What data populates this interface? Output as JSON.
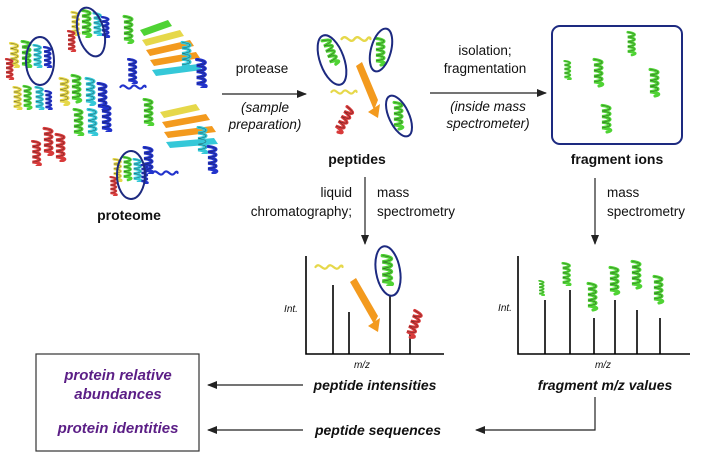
{
  "labels": {
    "proteome": "proteome",
    "protease": "protease",
    "sample_prep_1": "(sample",
    "sample_prep_2": "preparation)",
    "peptides": "peptides",
    "isolation_1": "isolation;",
    "isolation_2": "fragmentation",
    "inside_ms_1": "(inside mass",
    "inside_ms_2": "spectrometer)",
    "fragment_ions": "fragment ions",
    "lc_1": "liquid",
    "lc_2": "chromatography;",
    "ms_1": "mass",
    "ms_2": "spectrometry",
    "ms2_1": "mass",
    "ms2_2": "spectrometry",
    "int_left": "Int.",
    "mz_left": "m/z",
    "int_right": "Int.",
    "mz_right": "m/z",
    "peptide_intensities": "peptide intensities",
    "fragment_mz_values": "fragment m/z values",
    "peptide_sequences": "peptide sequences",
    "protein_relative_1": "protein relative",
    "protein_relative_2": "abundances",
    "protein_identities": "protein identities"
  },
  "colors": {
    "ellipse": "#1d2a80",
    "purple_text": "#5b1e86",
    "helix_green": "#4fd334",
    "helix_yellow": "#e6d84a",
    "helix_red": "#d83a3a",
    "strand_orange": "#f39a1e",
    "helix_blue": "#2233cc",
    "helix_cyan": "#35c8d8"
  },
  "icons": [
    "protein-structure-icon",
    "helix-icon",
    "beta-strand-icon"
  ]
}
